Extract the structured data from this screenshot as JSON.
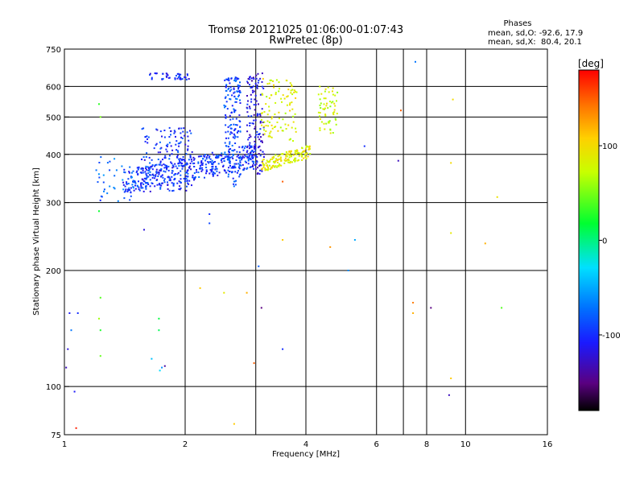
{
  "chart_data": {
    "type": "scatter",
    "title": "Tromsø 20121025 01:06:00-01:07:43",
    "subtitle": "RwPretec (8p)",
    "stats": {
      "title": "Phases",
      "line_o": "mean, sd,O: -92.6, 17.9",
      "line_x": "mean, sd,X:  80.4, 20.1"
    },
    "xlabel": "Frequency [MHz]",
    "ylabel": "Stationary phase Virtual Height [km]",
    "x_scale": "log",
    "y_scale": "log",
    "xlim": [
      1,
      16
    ],
    "ylim": [
      75,
      750
    ],
    "x_ticks": [
      1,
      2,
      4,
      6,
      8,
      10,
      16
    ],
    "x_tick_labels": [
      "1",
      "2",
      "4",
      "6",
      "8",
      "10",
      "16"
    ],
    "x_grid": [
      2,
      3,
      4,
      6,
      7,
      8,
      10
    ],
    "y_ticks": [
      75,
      100,
      200,
      300,
      400,
      500,
      600,
      750
    ],
    "y_tick_labels": [
      "75",
      "100",
      "200",
      "300",
      "400",
      "500",
      "600",
      "750"
    ],
    "y_grid": [
      100,
      200,
      300,
      400,
      500,
      600
    ],
    "grid": true,
    "colorbar": {
      "label": "[deg]",
      "min": -180,
      "max": 180,
      "ticks": [
        100,
        0,
        -100
      ],
      "tick_labels": [
        "100",
        "0",
        "-100"
      ]
    },
    "point_groups": [
      {
        "name": "o-trace-lower",
        "phase": -95,
        "x_range": [
          1.4,
          3.0
        ],
        "y_range": [
          315,
          420
        ],
        "count": 420
      },
      {
        "name": "o-trace-upper",
        "phase": -100,
        "x_range": [
          1.55,
          2.1
        ],
        "y_range": [
          320,
          470
        ],
        "count": 170
      },
      {
        "name": "o-trace-top",
        "phase": -105,
        "x_range": [
          1.62,
          2.05
        ],
        "y_range": [
          625,
          650
        ],
        "count": 40
      },
      {
        "name": "o-column-2.6",
        "phase": -90,
        "x_range": [
          2.5,
          2.75
        ],
        "y_range": [
          330,
          640
        ],
        "count": 170
      },
      {
        "name": "o-column-3.0",
        "phase": -115,
        "x_range": [
          2.85,
          3.15
        ],
        "y_range": [
          355,
          650
        ],
        "count": 150
      },
      {
        "name": "o-scatter-low",
        "phase": -80,
        "x_range": [
          1.2,
          1.5
        ],
        "y_range": [
          300,
          400
        ],
        "count": 40
      },
      {
        "name": "x-trace-lower",
        "phase": 90,
        "x_range": [
          3.1,
          4.1
        ],
        "y_range": [
          360,
          420
        ],
        "count": 150
      },
      {
        "name": "x-trace-upper",
        "phase": 85,
        "x_range": [
          3.1,
          3.8
        ],
        "y_range": [
          430,
          640
        ],
        "count": 100
      },
      {
        "name": "x-column-4.5",
        "phase": 75,
        "x_range": [
          4.3,
          4.8
        ],
        "y_range": [
          450,
          600
        ],
        "count": 60
      }
    ],
    "sparse_points": [
      {
        "x": 1.22,
        "y": 540,
        "phase": 30
      },
      {
        "x": 1.23,
        "y": 500,
        "phase": 50
      },
      {
        "x": 1.22,
        "y": 285,
        "phase": 20
      },
      {
        "x": 1.23,
        "y": 170,
        "phase": 40
      },
      {
        "x": 1.22,
        "y": 150,
        "phase": 60
      },
      {
        "x": 1.23,
        "y": 140,
        "phase": 25
      },
      {
        "x": 1.23,
        "y": 120,
        "phase": 45
      },
      {
        "x": 1.03,
        "y": 155,
        "phase": -110
      },
      {
        "x": 1.08,
        "y": 155,
        "phase": -100
      },
      {
        "x": 1.04,
        "y": 140,
        "phase": -70
      },
      {
        "x": 1.02,
        "y": 125,
        "phase": -120
      },
      {
        "x": 1.01,
        "y": 112,
        "phase": -130
      },
      {
        "x": 1.06,
        "y": 97,
        "phase": -110
      },
      {
        "x": 1.07,
        "y": 78,
        "phase": 170
      },
      {
        "x": 1.58,
        "y": 255,
        "phase": -120
      },
      {
        "x": 1.72,
        "y": 150,
        "phase": 15
      },
      {
        "x": 1.72,
        "y": 140,
        "phase": 10
      },
      {
        "x": 1.65,
        "y": 118,
        "phase": -40
      },
      {
        "x": 1.75,
        "y": 112,
        "phase": -60
      },
      {
        "x": 1.78,
        "y": 113,
        "phase": -140
      },
      {
        "x": 1.73,
        "y": 110,
        "phase": -30
      },
      {
        "x": 2.18,
        "y": 180,
        "phase": 110
      },
      {
        "x": 2.3,
        "y": 265,
        "phase": -90
      },
      {
        "x": 2.3,
        "y": 280,
        "phase": -100
      },
      {
        "x": 2.5,
        "y": 175,
        "phase": 90
      },
      {
        "x": 2.65,
        "y": 80,
        "phase": 110
      },
      {
        "x": 2.85,
        "y": 175,
        "phase": 120
      },
      {
        "x": 2.97,
        "y": 115,
        "phase": 150
      },
      {
        "x": 3.05,
        "y": 205,
        "phase": -80
      },
      {
        "x": 3.1,
        "y": 160,
        "phase": -150
      },
      {
        "x": 3.5,
        "y": 240,
        "phase": 110
      },
      {
        "x": 3.5,
        "y": 125,
        "phase": -100
      },
      {
        "x": 3.5,
        "y": 340,
        "phase": 150
      },
      {
        "x": 4.6,
        "y": 230,
        "phase": 130
      },
      {
        "x": 5.1,
        "y": 200,
        "phase": -60
      },
      {
        "x": 5.3,
        "y": 240,
        "phase": -50
      },
      {
        "x": 5.6,
        "y": 420,
        "phase": -100
      },
      {
        "x": 6.9,
        "y": 520,
        "phase": 150
      },
      {
        "x": 6.8,
        "y": 385,
        "phase": -130
      },
      {
        "x": 7.5,
        "y": 695,
        "phase": -70
      },
      {
        "x": 7.4,
        "y": 165,
        "phase": 140
      },
      {
        "x": 7.4,
        "y": 155,
        "phase": 120
      },
      {
        "x": 8.2,
        "y": 160,
        "phase": -150
      },
      {
        "x": 9.2,
        "y": 380,
        "phase": 100
      },
      {
        "x": 9.2,
        "y": 250,
        "phase": 90
      },
      {
        "x": 9.2,
        "y": 105,
        "phase": 110
      },
      {
        "x": 9.1,
        "y": 95,
        "phase": -130
      },
      {
        "x": 9.3,
        "y": 555,
        "phase": 100
      },
      {
        "x": 11.2,
        "y": 235,
        "phase": 120
      },
      {
        "x": 12.0,
        "y": 310,
        "phase": 95
      },
      {
        "x": 12.3,
        "y": 160,
        "phase": 40
      }
    ]
  }
}
